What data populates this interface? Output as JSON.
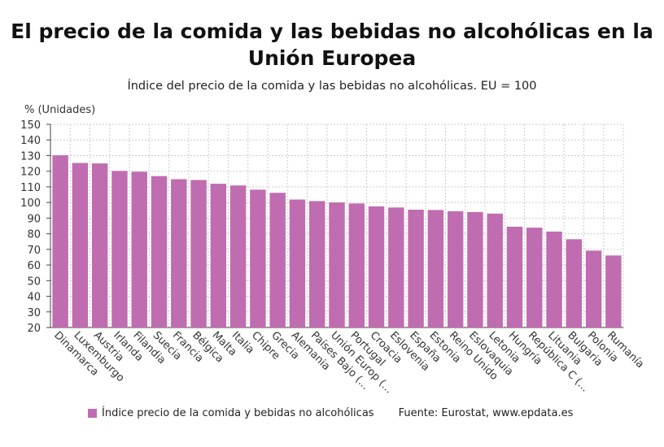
{
  "chart_data": {
    "type": "bar",
    "title": "El precio de la comida y las bebidas no alcohólicas en la Unión Europea",
    "subtitle": "Índice del precio de la comida y las bebidas no alcohólicas. EU = 100",
    "ylabel": "% (Unidades)",
    "ylim": [
      20,
      150
    ],
    "yticks": [
      20,
      30,
      40,
      50,
      60,
      70,
      80,
      90,
      100,
      110,
      120,
      130,
      140,
      150
    ],
    "grid": true,
    "legend_position": "bottom",
    "categories": [
      "Dinamarca",
      "Luxemburgo",
      "Austria",
      "Irlanda",
      "Filandia",
      "Suecia",
      "Francia",
      "Bélgica",
      "Malta",
      "Italia",
      "Chipre",
      "Grecia",
      "Alemania",
      "Países Bajo (...",
      "Unión Europ (...",
      "Portugal",
      "Croacia",
      "Eslovenia",
      "España",
      "Estonia",
      "Reino Unido",
      "Eslovaquia",
      "Letonia",
      "Hungría",
      "República C (...",
      "Lituania",
      "Bulgaria",
      "Polonia",
      "Rumanía"
    ],
    "series": [
      {
        "name": "Índice precio de la comida y bebidas no alcohólicas",
        "color": "#c06cb0",
        "values": [
          130.2,
          125.3,
          125.0,
          120.2,
          119.7,
          116.9,
          114.9,
          114.4,
          112.0,
          110.9,
          108.2,
          106.2,
          101.9,
          100.9,
          100.0,
          99.4,
          97.5,
          96.8,
          95.4,
          95.2,
          94.4,
          93.9,
          92.9,
          84.5,
          83.9,
          81.4,
          76.5,
          69.2,
          66.1
        ]
      }
    ]
  },
  "source": "Fuente: Eurostat, www.epdata.es"
}
